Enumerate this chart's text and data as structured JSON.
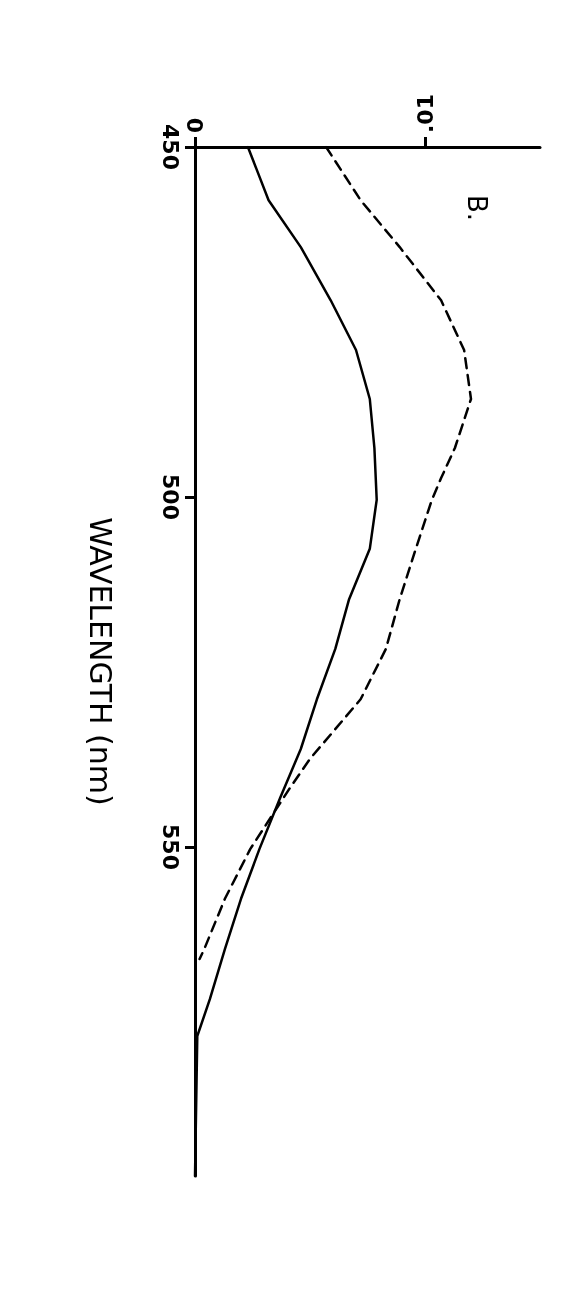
{
  "chart_data": {
    "type": "line",
    "ylabel": "WAVELENGTH (nm)",
    "annotations": [
      "B."
    ],
    "ylim": [
      597,
      450
    ],
    "yticks": [
      450,
      500,
      550
    ],
    "xlim": [
      0,
      0.015
    ],
    "xticks": [
      {
        "value": 0,
        "label": "0"
      },
      {
        "value": 0.01,
        "label": ".01"
      }
    ],
    "grid": false,
    "marker": "none",
    "series": [
      {
        "color": "#000000",
        "line_style": "solid",
        "values": [
          450,
          457.6,
          464.3,
          471.9,
          479,
          486,
          493,
          500.4,
          507.4,
          514.6,
          521.7,
          528.9,
          536,
          543,
          550.3,
          557.4,
          564.6,
          571.7,
          577,
          597
        ],
        "x": [
          0.0023,
          0.0032,
          0.0046,
          0.0059,
          0.007,
          0.0076,
          0.0078,
          0.0079,
          0.0076,
          0.0067,
          0.0061,
          0.0053,
          0.0046,
          0.0037,
          0.0028,
          0.002,
          0.0013,
          0.00065,
          0.0001,
          0
        ]
      },
      {
        "color": "#000000",
        "line_style": "dashed",
        "values": [
          450,
          457.6,
          464.3,
          471.9,
          479,
          486,
          493,
          497.3,
          500.4,
          507.4,
          514.6,
          521.7,
          528.9,
          537.4,
          541.7,
          550.3,
          557.4,
          564.6,
          566
        ],
        "x": [
          0.0057,
          0.0072,
          0.0089,
          0.0107,
          0.0117,
          0.012,
          0.0113,
          0.0107,
          0.0103,
          0.0096,
          0.0089,
          0.0083,
          0.0072,
          0.005,
          0.0041,
          0.0024,
          0.0013,
          0.0004,
          0.0002
        ]
      }
    ]
  }
}
